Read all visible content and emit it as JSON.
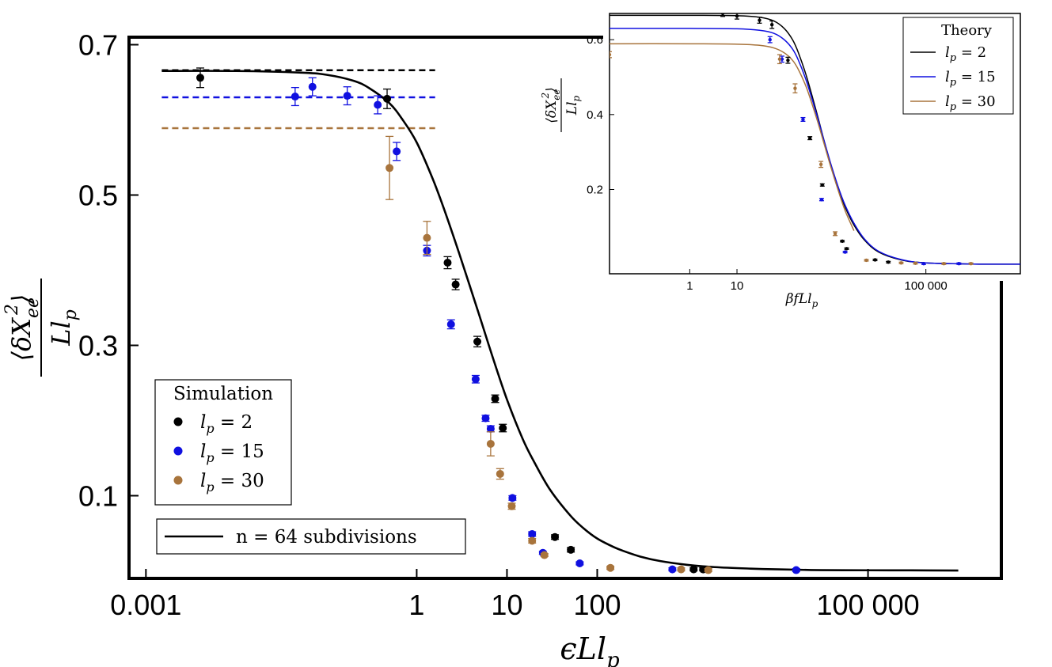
{
  "colors": {
    "black": "#000000",
    "blue": "#1010e0",
    "brown": "#a8743c"
  },
  "chart_data": [
    {
      "name": "main",
      "type": "scatter",
      "xscale": "log",
      "xlim": [
        0.00065,
        3000000
      ],
      "ylim": [
        -0.01,
        0.71
      ],
      "xticks": [
        0.001,
        1,
        10,
        100,
        100000
      ],
      "xtick_labels": [
        "0.001",
        "1",
        "10",
        "100",
        "100 000"
      ],
      "yticks": [
        0.1,
        0.3,
        0.5,
        0.7
      ],
      "ytick_labels": [
        "0.1",
        "0.3",
        "0.5",
        "0.7"
      ],
      "xlabel": "ϵLl_p",
      "ylabel": "⟨δX_ee^2⟩ / Ll_p",
      "legend_title": "Simulation",
      "legend_placement": "bottom-left",
      "fit_legend": "n = 64 subdivisions",
      "grid": false,
      "plateaus": [
        {
          "series": "l_p = 2",
          "value": 0.666
        },
        {
          "series": "l_p = 15",
          "value": 0.63
        },
        {
          "series": "l_p = 30",
          "value": 0.589
        }
      ],
      "series": [
        {
          "name": "l_p = 2",
          "color": "#000000",
          "points": [
            [
              0.004,
              0.656,
              0.013
            ],
            [
              0.47,
              0.628,
              0.013
            ],
            [
              2.2,
              0.41,
              0.008
            ],
            [
              2.7,
              0.381,
              0.007
            ],
            [
              4.7,
              0.305,
              0.007
            ],
            [
              7.4,
              0.229,
              0.005
            ],
            [
              9.0,
              0.19,
              0.005
            ],
            [
              34,
              0.045,
              0.003
            ],
            [
              51,
              0.028,
              0.003
            ],
            [
              1170,
              0.002,
              0.002
            ],
            [
              1490,
              0.002,
              0.002
            ]
          ]
        },
        {
          "name": "l_p = 15",
          "color": "#1010e0",
          "points": [
            [
              0.045,
              0.631,
              0.012
            ],
            [
              0.07,
              0.644,
              0.012
            ],
            [
              0.17,
              0.632,
              0.012
            ],
            [
              0.37,
              0.62,
              0.012
            ],
            [
              0.6,
              0.558,
              0.012
            ],
            [
              1.3,
              0.426,
              0.007
            ],
            [
              2.4,
              0.328,
              0.006
            ],
            [
              4.5,
              0.255,
              0.005
            ],
            [
              5.8,
              0.203,
              0.004
            ],
            [
              6.6,
              0.189,
              0.004
            ],
            [
              11.5,
              0.097,
              0.003
            ],
            [
              19,
              0.049,
              0.003
            ],
            [
              25,
              0.024,
              0.002
            ],
            [
              64,
              0.01,
              0.002
            ],
            [
              680,
              0.002,
              0.002
            ],
            [
              16000,
              0.001,
              0.002
            ]
          ]
        },
        {
          "name": "l_p = 30",
          "color": "#a8743c",
          "points": [
            [
              0.5,
              0.536,
              0.042
            ],
            [
              1.3,
              0.443,
              0.022
            ],
            [
              6.6,
              0.169,
              0.016
            ],
            [
              8.4,
              0.129,
              0.007
            ],
            [
              11.3,
              0.086,
              0.004
            ],
            [
              19,
              0.04,
              0.003
            ],
            [
              26,
              0.021,
              0.002
            ],
            [
              140,
              0.004,
              0.002
            ],
            [
              850,
              0.002,
              0.002
            ],
            [
              1700,
              0.001,
              0.002
            ]
          ]
        }
      ],
      "fit": {
        "name": "n = 64 subdivisions",
        "color": "#000000",
        "x": [
          0.0015,
          0.01,
          0.05,
          0.1,
          0.2,
          0.3,
          0.5,
          0.7,
          1,
          1.5,
          2,
          3,
          5,
          7,
          10,
          15,
          20,
          30,
          50,
          70,
          100,
          150,
          200,
          300,
          500,
          1000,
          2000,
          5000,
          10000,
          30000,
          100000,
          300000,
          1000000
        ],
        "y": [
          0.665,
          0.665,
          0.663,
          0.66,
          0.652,
          0.642,
          0.622,
          0.6,
          0.57,
          0.522,
          0.482,
          0.42,
          0.338,
          0.283,
          0.228,
          0.175,
          0.145,
          0.108,
          0.074,
          0.057,
          0.043,
          0.032,
          0.026,
          0.019,
          0.013,
          0.008,
          0.005,
          0.003,
          0.002,
          0.001,
          0.0008,
          0.0007,
          0.0005
        ]
      }
    },
    {
      "name": "inset",
      "type": "scatter",
      "xscale": "log",
      "xlim": [
        0.02,
        10000000
      ],
      "ylim": [
        -0.025,
        0.67
      ],
      "xticks": [
        1,
        10,
        100000
      ],
      "xtick_labels": [
        "1",
        "10",
        "100 000"
      ],
      "yticks": [
        0.2,
        0.4,
        0.6
      ],
      "ytick_labels": [
        "0.2",
        "0.4",
        "0.6"
      ],
      "xlabel": "βfLl_p",
      "ylabel": "⟨δX_ee^2⟩ / Ll_p",
      "legend_title": "Theory",
      "legend_placement": "top-right",
      "grid": false,
      "theory": [
        {
          "name": "l_p = 2",
          "color": "#000000",
          "x": [
            0.02,
            1,
            10,
            30,
            60,
            100,
            150,
            200,
            300,
            500,
            700,
            1000,
            1500,
            2000,
            3000,
            5000,
            10000,
            30000,
            100000,
            1000000,
            10000000
          ],
          "y": [
            0.665,
            0.665,
            0.664,
            0.66,
            0.65,
            0.63,
            0.6,
            0.565,
            0.5,
            0.4,
            0.33,
            0.26,
            0.19,
            0.15,
            0.105,
            0.065,
            0.033,
            0.012,
            0.004,
            0.001,
            0.0005
          ]
        },
        {
          "name": "l_p = 15",
          "color": "#1010e0",
          "x": [
            0.02,
            1,
            10,
            30,
            60,
            100,
            150,
            200,
            300,
            500,
            700,
            1000,
            1500,
            2000,
            3000,
            5000,
            10000,
            30000,
            100000,
            1000000,
            10000000
          ],
          "y": [
            0.63,
            0.63,
            0.629,
            0.625,
            0.617,
            0.6,
            0.575,
            0.545,
            0.487,
            0.395,
            0.33,
            0.263,
            0.195,
            0.155,
            0.11,
            0.068,
            0.035,
            0.013,
            0.004,
            0.001,
            0.0005
          ]
        },
        {
          "name": "l_p = 30",
          "color": "#a8743c",
          "x": [
            0.02,
            1,
            10,
            30,
            60,
            100,
            150,
            200,
            300,
            500,
            700,
            1000,
            1500,
            2000,
            3000
          ],
          "y": [
            0.589,
            0.589,
            0.588,
            0.585,
            0.578,
            0.565,
            0.545,
            0.52,
            0.47,
            0.385,
            0.322,
            0.255,
            0.185,
            0.14,
            0.09
          ]
        }
      ],
      "series": [
        {
          "name": "l_p = 2",
          "color": "#000000",
          "points": [
            [
              5,
              0.67,
              0.008
            ],
            [
              10,
              0.663,
              0.008
            ],
            [
              30,
              0.652,
              0.008
            ],
            [
              55,
              0.64,
              0.01
            ],
            [
              120,
              0.545,
              0.008
            ],
            [
              350,
              0.337,
              0.004
            ],
            [
              640,
              0.212,
              0.003
            ],
            [
              1700,
              0.062,
              0.002
            ],
            [
              2100,
              0.042,
              0.002
            ],
            [
              8400,
              0.012,
              0.002
            ],
            [
              16000,
              0.006,
              0.002
            ]
          ]
        },
        {
          "name": "l_p = 15",
          "color": "#1010e0",
          "points": [
            [
              50,
              0.6,
              0.008
            ],
            [
              90,
              0.548,
              0.008
            ],
            [
              250,
              0.387,
              0.005
            ],
            [
              620,
              0.173,
              0.003
            ],
            [
              1950,
              0.033,
              0.002
            ],
            [
              90000,
              0.002,
              0.002
            ],
            [
              500000,
              0.002,
              0.002
            ]
          ]
        },
        {
          "name": "l_p = 30",
          "color": "#a8743c",
          "points": [
            [
              0.02,
              0.56,
              0.008
            ],
            [
              80,
              0.548,
              0.012
            ],
            [
              170,
              0.47,
              0.012
            ],
            [
              600,
              0.267,
              0.008
            ],
            [
              1200,
              0.082,
              0.005
            ],
            [
              5500,
              0.011,
              0.002
            ],
            [
              30000,
              0.004,
              0.002
            ],
            [
              60000,
              0.003,
              0.002
            ],
            [
              240000,
              0.002,
              0.002
            ],
            [
              900000,
              0.002,
              0.002
            ]
          ]
        }
      ]
    }
  ]
}
